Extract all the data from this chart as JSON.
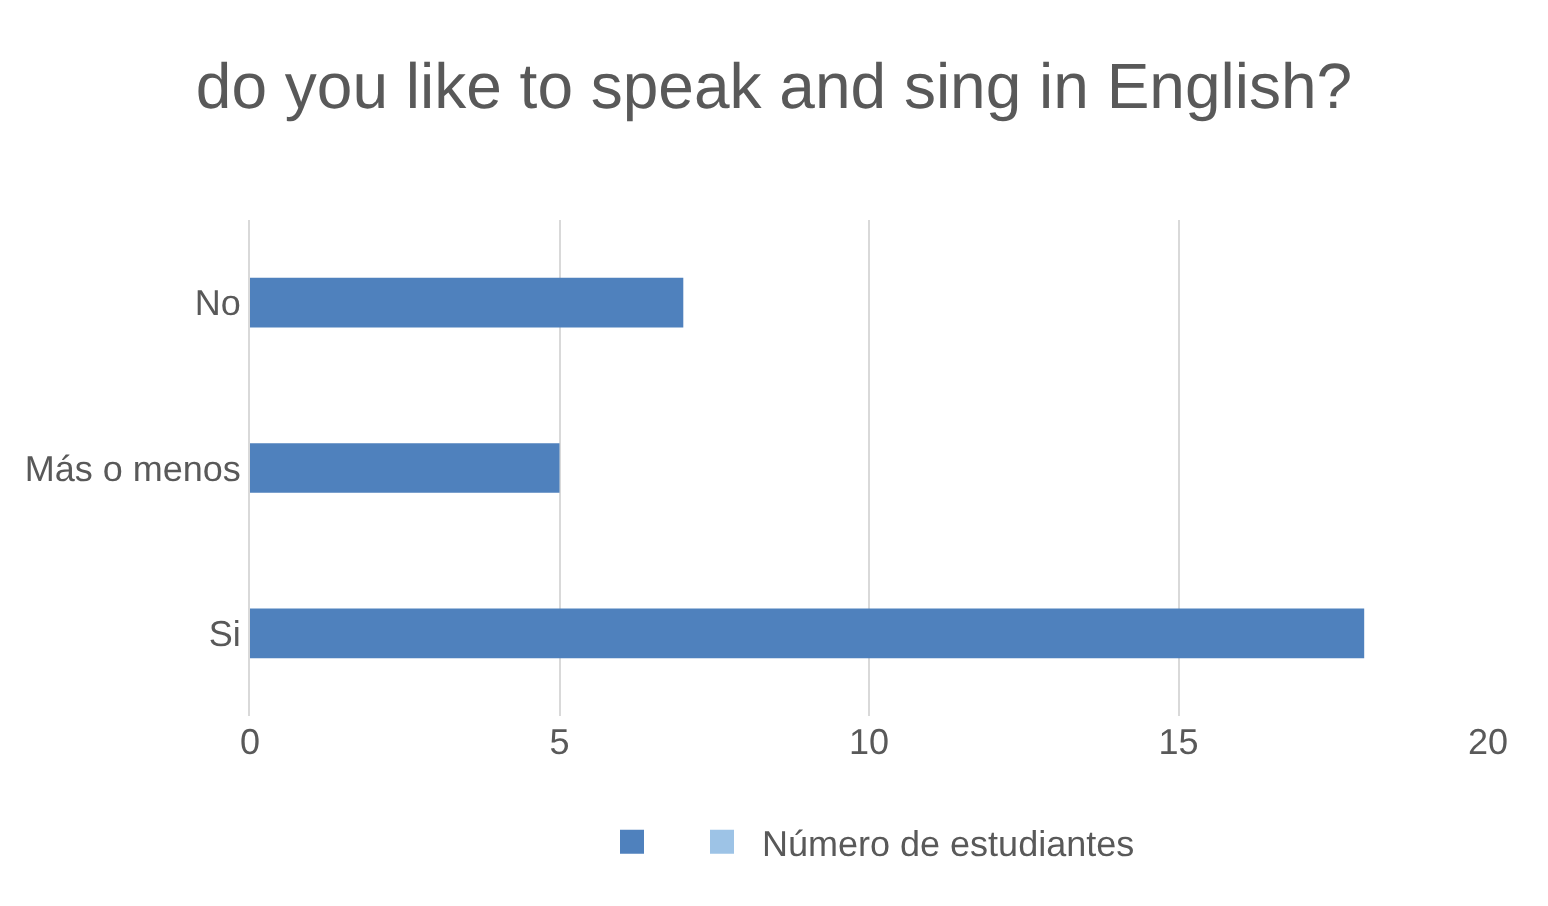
{
  "chart_data": {
    "type": "bar",
    "orientation": "horizontal",
    "title": "do you like to speak and sing in English?",
    "categories": [
      "No",
      "Más o menos",
      "Si"
    ],
    "series": [
      {
        "color": "#4f81bd",
        "values": [
          7,
          5,
          18
        ]
      },
      {
        "name": "Número de estudiantes",
        "color": "#9dc3e6",
        "values": [
          null,
          null,
          null
        ]
      }
    ],
    "xlim": [
      0,
      20
    ],
    "xticks": [
      0,
      5,
      10,
      15,
      20
    ],
    "grid": "x",
    "legend": "bottom"
  }
}
